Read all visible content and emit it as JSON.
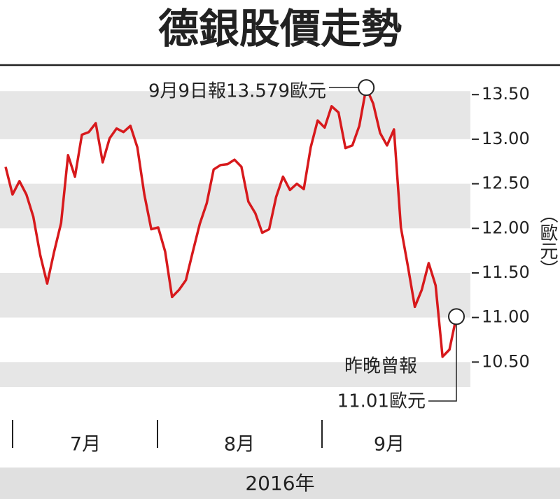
{
  "chart_data": {
    "type": "line",
    "title": "德銀股價走勢",
    "y_label": "（歐元）",
    "x_label": "2016年",
    "month_labels": [
      "7月",
      "8月",
      "9月"
    ],
    "values": [
      12.69,
      12.38,
      12.53,
      12.38,
      12.13,
      11.7,
      11.38,
      11.74,
      12.06,
      12.82,
      12.58,
      13.05,
      13.08,
      13.18,
      12.74,
      13.01,
      13.12,
      13.08,
      13.15,
      12.91,
      12.38,
      11.99,
      12.01,
      11.74,
      11.23,
      11.31,
      11.42,
      11.74,
      12.05,
      12.28,
      12.66,
      12.71,
      12.72,
      12.77,
      12.69,
      12.3,
      12.17,
      11.95,
      11.99,
      12.35,
      12.58,
      12.43,
      12.5,
      12.44,
      12.91,
      13.21,
      13.13,
      13.37,
      13.3,
      12.9,
      12.93,
      13.15,
      13.579,
      13.4,
      13.07,
      12.93,
      13.11,
      12.01,
      11.58,
      11.12,
      11.31,
      11.61,
      11.36,
      10.56,
      10.64,
      11.01
    ],
    "color": "#d7191c",
    "ylim": [
      10.22,
      13.8
    ],
    "yticks": [
      {
        "value": 10.5,
        "label": "10.50"
      },
      {
        "value": 11,
        "label": "11.00"
      },
      {
        "value": 11.5,
        "label": "11.50"
      },
      {
        "value": 12,
        "label": "12.00"
      },
      {
        "value": 12.5,
        "label": "12.50"
      },
      {
        "value": 13,
        "label": "13.00"
      },
      {
        "value": 13.5,
        "label": "13.50"
      }
    ],
    "annotations": [
      {
        "text": "9月9日報13.579歐元",
        "index": 52
      },
      {
        "text": "昨晚曾報",
        "index": 65
      },
      {
        "text": "11.01歐元",
        "index": 65
      }
    ]
  }
}
